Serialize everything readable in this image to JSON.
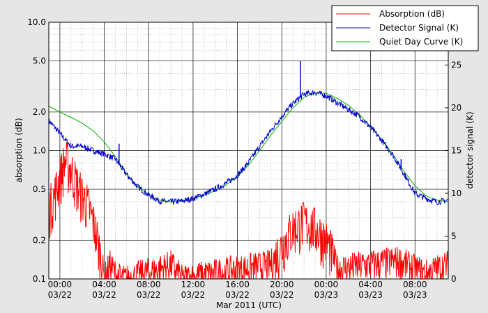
{
  "chart_data": {
    "type": "line",
    "title": "",
    "xlabel": "Mar 2011 (UTC)",
    "ylabel_left": "absorption (dB)",
    "ylabel_right": "detector signal (K)",
    "x_range": [
      "2011-03-21T23:00",
      "2011-03-23T11:00"
    ],
    "y_left_scale": "log",
    "y_left_range": [
      0.1,
      10.0
    ],
    "y_right_range": [
      0,
      30
    ],
    "grid": true,
    "legend_position": "top-right",
    "x_ticks": [
      {
        "t": "2011-03-22T00:00",
        "time": "00:00",
        "date": "03/22"
      },
      {
        "t": "2011-03-22T04:00",
        "time": "04:00",
        "date": "03/22"
      },
      {
        "t": "2011-03-22T08:00",
        "time": "08:00",
        "date": "03/22"
      },
      {
        "t": "2011-03-22T12:00",
        "time": "12:00",
        "date": "03/22"
      },
      {
        "t": "2011-03-22T16:00",
        "time": "16:00",
        "date": "03/22"
      },
      {
        "t": "2011-03-22T20:00",
        "time": "20:00",
        "date": "03/22"
      },
      {
        "t": "2011-03-23T00:00",
        "time": "00:00",
        "date": "03/23"
      },
      {
        "t": "2011-03-23T04:00",
        "time": "04:00",
        "date": "03/23"
      },
      {
        "t": "2011-03-23T08:00",
        "time": "08:00",
        "date": "03/23"
      }
    ],
    "y_left_ticks": [
      {
        "v": 0.1,
        "label": "0.1"
      },
      {
        "v": 0.2,
        "label": "0.2"
      },
      {
        "v": 0.5,
        "label": "0.5"
      },
      {
        "v": 1.0,
        "label": "1.0"
      },
      {
        "v": 2.0,
        "label": "2.0"
      },
      {
        "v": 5.0,
        "label": "5.0"
      },
      {
        "v": 10.0,
        "label": "10.0"
      }
    ],
    "y_right_ticks": [
      {
        "v": 0,
        "label": "0"
      },
      {
        "v": 5,
        "label": "5"
      },
      {
        "v": 10,
        "label": "10"
      },
      {
        "v": 15,
        "label": "15"
      },
      {
        "v": 20,
        "label": "20"
      },
      {
        "v": 25,
        "label": "25"
      }
    ],
    "legend": [
      {
        "label": "Absorption (dB)",
        "color": "#ff0000"
      },
      {
        "label": "Detector Signal (K)",
        "color": "#0000cc"
      },
      {
        "label": "Quiet Day Curve (K)",
        "color": "#00b000"
      }
    ],
    "series": [
      {
        "name": "Quiet Day Curve (K)",
        "axis": "right",
        "color": "#00b000",
        "x": [
          "2011-03-21T23:00",
          "2011-03-22T00:00",
          "2011-03-22T01:00",
          "2011-03-22T02:00",
          "2011-03-22T03:00",
          "2011-03-22T04:00",
          "2011-03-22T05:00",
          "2011-03-22T06:00",
          "2011-03-22T07:00",
          "2011-03-22T08:00",
          "2011-03-22T09:00",
          "2011-03-22T10:00",
          "2011-03-22T11:00",
          "2011-03-22T12:00",
          "2011-03-22T13:00",
          "2011-03-22T14:00",
          "2011-03-22T15:00",
          "2011-03-22T16:00",
          "2011-03-22T17:00",
          "2011-03-22T18:00",
          "2011-03-22T19:00",
          "2011-03-22T20:00",
          "2011-03-22T21:00",
          "2011-03-22T22:00",
          "2011-03-22T23:00",
          "2011-03-23T00:00",
          "2011-03-23T01:00",
          "2011-03-23T02:00",
          "2011-03-23T03:00",
          "2011-03-23T04:00",
          "2011-03-23T05:00",
          "2011-03-23T06:00",
          "2011-03-23T07:00",
          "2011-03-23T08:00",
          "2011-03-23T09:00",
          "2011-03-23T10:00",
          "2011-03-23T11:00"
        ],
        "values": [
          20.2,
          19.5,
          18.9,
          18.2,
          17.3,
          16.0,
          14.3,
          12.3,
          10.8,
          9.8,
          9.2,
          9.0,
          9.1,
          9.4,
          9.8,
          10.3,
          11.0,
          12.0,
          13.3,
          15.0,
          16.8,
          18.4,
          20.0,
          21.2,
          21.8,
          21.7,
          21.1,
          20.3,
          19.2,
          17.8,
          16.3,
          14.6,
          12.6,
          10.9,
          9.7,
          9.2,
          9.0
        ]
      },
      {
        "name": "Detector Signal (K)",
        "axis": "right",
        "color": "#0000cc",
        "x": [
          "2011-03-21T23:00",
          "2011-03-22T00:00",
          "2011-03-22T01:00",
          "2011-03-22T02:00",
          "2011-03-22T03:00",
          "2011-03-22T04:00",
          "2011-03-22T05:00",
          "2011-03-22T06:00",
          "2011-03-22T07:00",
          "2011-03-22T08:00",
          "2011-03-22T09:00",
          "2011-03-22T10:00",
          "2011-03-22T11:00",
          "2011-03-22T12:00",
          "2011-03-22T13:00",
          "2011-03-22T14:00",
          "2011-03-22T15:00",
          "2011-03-22T16:00",
          "2011-03-22T17:00",
          "2011-03-22T18:00",
          "2011-03-22T19:00",
          "2011-03-22T20:00",
          "2011-03-22T21:00",
          "2011-03-22T22:00",
          "2011-03-22T23:00",
          "2011-03-23T00:00",
          "2011-03-23T01:00",
          "2011-03-23T02:00",
          "2011-03-23T03:00",
          "2011-03-23T04:00",
          "2011-03-23T05:00",
          "2011-03-23T06:00",
          "2011-03-23T07:00",
          "2011-03-23T08:00",
          "2011-03-23T09:00",
          "2011-03-23T10:00",
          "2011-03-23T11:00"
        ],
        "values": [
          18.5,
          17.0,
          15.5,
          15.5,
          15.0,
          14.6,
          14.0,
          12.2,
          10.8,
          9.8,
          9.1,
          9.0,
          9.1,
          9.4,
          9.9,
          10.5,
          11.2,
          12.1,
          13.6,
          15.5,
          17.3,
          19.0,
          20.5,
          21.6,
          21.8,
          21.4,
          20.6,
          19.8,
          19.0,
          17.7,
          16.2,
          14.5,
          12.3,
          10.0,
          9.4,
          9.0,
          9.2
        ],
        "spikes": [
          {
            "x": "2011-03-22T05:20",
            "value": 15.8
          },
          {
            "x": "2011-03-22T21:40",
            "value": 25.5
          },
          {
            "x": "2011-03-23T06:45",
            "value": 14.0
          }
        ]
      },
      {
        "name": "Absorption (dB)",
        "axis": "left",
        "color": "#ff0000",
        "x": [
          "2011-03-21T23:00",
          "2011-03-21T23:30",
          "2011-03-22T00:00",
          "2011-03-22T00:30",
          "2011-03-22T01:00",
          "2011-03-22T01:30",
          "2011-03-22T02:00",
          "2011-03-22T02:30",
          "2011-03-22T03:00",
          "2011-03-22T03:30",
          "2011-03-22T04:00",
          "2011-03-22T04:30",
          "2011-03-22T05:00",
          "2011-03-22T05:30",
          "2011-03-22T06:00",
          "2011-03-22T09:00",
          "2011-03-22T10:00",
          "2011-03-22T11:00",
          "2011-03-22T19:00",
          "2011-03-22T20:00",
          "2011-03-22T21:00",
          "2011-03-22T22:00",
          "2011-03-22T23:00",
          "2011-03-23T00:00",
          "2011-03-23T01:00",
          "2011-03-23T06:30",
          "2011-03-23T08:00",
          "2011-03-23T09:00",
          "2011-03-23T10:00",
          "2011-03-23T11:00"
        ],
        "values": [
          0.35,
          0.45,
          0.62,
          0.85,
          0.72,
          0.55,
          0.45,
          0.38,
          0.28,
          0.18,
          0.1,
          0.13,
          0.11,
          0.1,
          0.1,
          0.12,
          0.13,
          0.1,
          0.13,
          0.18,
          0.25,
          0.28,
          0.25,
          0.2,
          0.12,
          0.14,
          0.12,
          0.11,
          0.12,
          0.13
        ]
      }
    ]
  }
}
